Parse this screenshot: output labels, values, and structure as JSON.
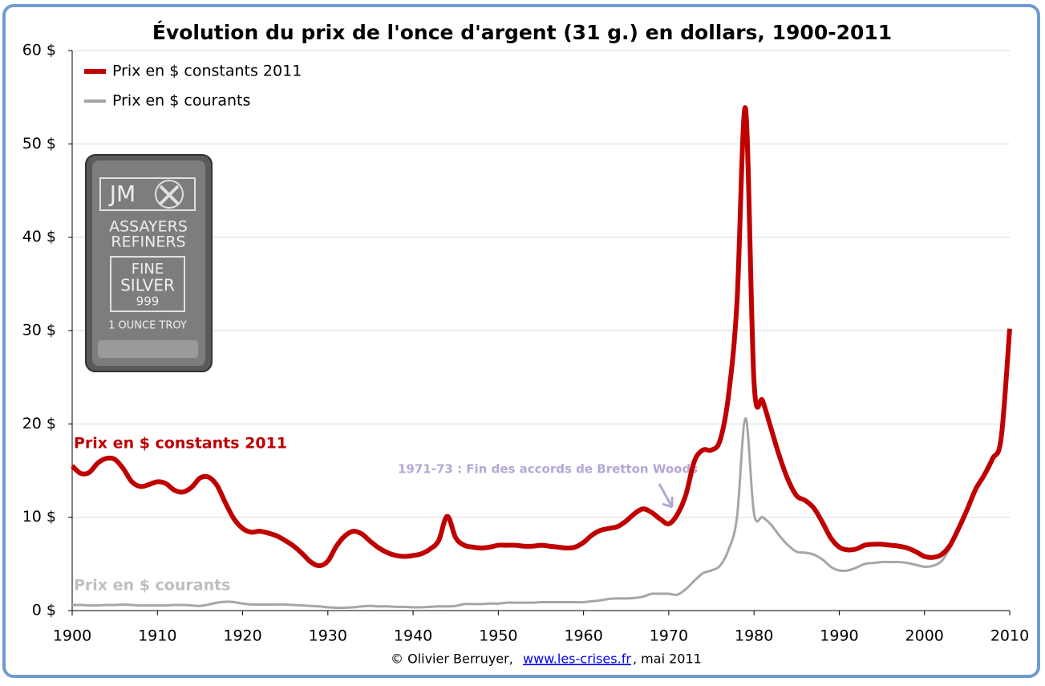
{
  "chart_data": {
    "type": "line",
    "title": "Évolution du prix de l'once d'argent (31 g.) en dollars, 1900-2011",
    "x": [
      1900,
      1901,
      1902,
      1903,
      1904,
      1905,
      1906,
      1907,
      1908,
      1909,
      1910,
      1911,
      1912,
      1913,
      1914,
      1915,
      1916,
      1917,
      1918,
      1919,
      1920,
      1921,
      1922,
      1923,
      1924,
      1925,
      1926,
      1927,
      1928,
      1929,
      1930,
      1931,
      1932,
      1933,
      1934,
      1935,
      1936,
      1937,
      1938,
      1939,
      1940,
      1941,
      1942,
      1943,
      1944,
      1945,
      1946,
      1947,
      1948,
      1949,
      1950,
      1951,
      1952,
      1953,
      1954,
      1955,
      1956,
      1957,
      1958,
      1959,
      1960,
      1961,
      1962,
      1963,
      1964,
      1965,
      1966,
      1967,
      1968,
      1969,
      1970,
      1971,
      1972,
      1973,
      1974,
      1975,
      1976,
      1977,
      1978,
      1979,
      1980,
      1981,
      1982,
      1983,
      1984,
      1985,
      1986,
      1987,
      1988,
      1989,
      1990,
      1991,
      1992,
      1993,
      1994,
      1995,
      1996,
      1997,
      1998,
      1999,
      2000,
      2001,
      2002,
      2003,
      2004,
      2005,
      2006,
      2007,
      2008,
      2009,
      2010
    ],
    "series": [
      {
        "name": "Prix en $ courants",
        "color": "#a6a6a6",
        "width": 3,
        "values": [
          0.6,
          0.6,
          0.55,
          0.55,
          0.6,
          0.6,
          0.65,
          0.6,
          0.55,
          0.55,
          0.55,
          0.55,
          0.6,
          0.6,
          0.55,
          0.5,
          0.65,
          0.85,
          0.95,
          0.9,
          0.75,
          0.65,
          0.65,
          0.65,
          0.65,
          0.65,
          0.6,
          0.55,
          0.5,
          0.45,
          0.35,
          0.3,
          0.3,
          0.35,
          0.45,
          0.5,
          0.45,
          0.45,
          0.4,
          0.4,
          0.35,
          0.35,
          0.4,
          0.45,
          0.45,
          0.5,
          0.7,
          0.7,
          0.7,
          0.75,
          0.75,
          0.85,
          0.85,
          0.85,
          0.85,
          0.9,
          0.9,
          0.9,
          0.9,
          0.9,
          0.9,
          1.0,
          1.1,
          1.25,
          1.3,
          1.3,
          1.35,
          1.5,
          1.8,
          1.8,
          1.8,
          1.7,
          2.3,
          3.2,
          4.0,
          4.3,
          4.8,
          6.5,
          10.0,
          20.6,
          10.4,
          10.0,
          9.2,
          8.0,
          7.0,
          6.3,
          6.2,
          6.0,
          5.5,
          4.7,
          4.3,
          4.3,
          4.6,
          5.0,
          5.1,
          5.2,
          5.2,
          5.2,
          5.1,
          4.9,
          4.7,
          4.8,
          5.3,
          6.7,
          8.5,
          10.5,
          13.0,
          null,
          null,
          null,
          null
        ]
      },
      {
        "name": "Prix en $ constants 2011",
        "color": "#c00000",
        "width": 6,
        "values": [
          15.5,
          14.7,
          14.8,
          15.8,
          16.3,
          16.2,
          15.2,
          13.8,
          13.3,
          13.5,
          13.8,
          13.6,
          12.9,
          12.7,
          13.2,
          14.2,
          14.3,
          13.4,
          11.5,
          9.8,
          8.8,
          8.4,
          8.5,
          8.3,
          8.0,
          7.5,
          6.9,
          6.1,
          5.2,
          4.8,
          5.3,
          6.9,
          8.0,
          8.5,
          8.2,
          7.4,
          6.7,
          6.2,
          5.9,
          5.8,
          5.9,
          6.1,
          6.6,
          7.5,
          10.1,
          7.8,
          7.0,
          6.8,
          6.7,
          6.8,
          7.0,
          7.0,
          7.0,
          6.9,
          6.9,
          7.0,
          6.9,
          6.8,
          6.7,
          6.8,
          7.3,
          8.1,
          8.6,
          8.8,
          9.0,
          9.6,
          10.4,
          10.9,
          10.5,
          9.8,
          9.3,
          10.3,
          12.4,
          16.0,
          17.2,
          17.2,
          18.2,
          23.0,
          33.0,
          53.8,
          24.5,
          22.5,
          19.5,
          16.5,
          14.0,
          12.3,
          11.8,
          11.0,
          9.5,
          7.8,
          6.8,
          6.5,
          6.6,
          7.0,
          7.1,
          7.1,
          7.0,
          6.9,
          6.7,
          6.3,
          5.8,
          5.7,
          6.0,
          7.0,
          8.8,
          10.8,
          13.0,
          14.5,
          16.3,
          18.5,
          30.2
        ]
      }
    ],
    "xlim": [
      1900,
      2010
    ],
    "xticks": [
      1900,
      1910,
      1920,
      1930,
      1940,
      1950,
      1960,
      1970,
      1980,
      1990,
      2000,
      2010
    ],
    "ylim": [
      0,
      60
    ],
    "yticks": [
      {
        "value": 0,
        "label": "0 $"
      },
      {
        "value": 10,
        "label": "10 $"
      },
      {
        "value": 20,
        "label": "20 $"
      },
      {
        "value": 30,
        "label": "30 $"
      },
      {
        "value": 40,
        "label": "40 $"
      },
      {
        "value": 50,
        "label": "50 $"
      },
      {
        "value": 60,
        "label": "60 $"
      }
    ],
    "grid": true,
    "legend": "upper left",
    "annotation": "1971-73 : Fin des accords de Bretton Woods",
    "footer": {
      "prefix": "© Olivier Berruyer,",
      "link": "www.les-crises.fr",
      "suffix": ",  mai 2011"
    },
    "image_labels": [
      "JM",
      "ASSAYERS",
      "REFINERS",
      "FINE",
      "SILVER",
      "999",
      "1 OUNCE TROY"
    ]
  }
}
